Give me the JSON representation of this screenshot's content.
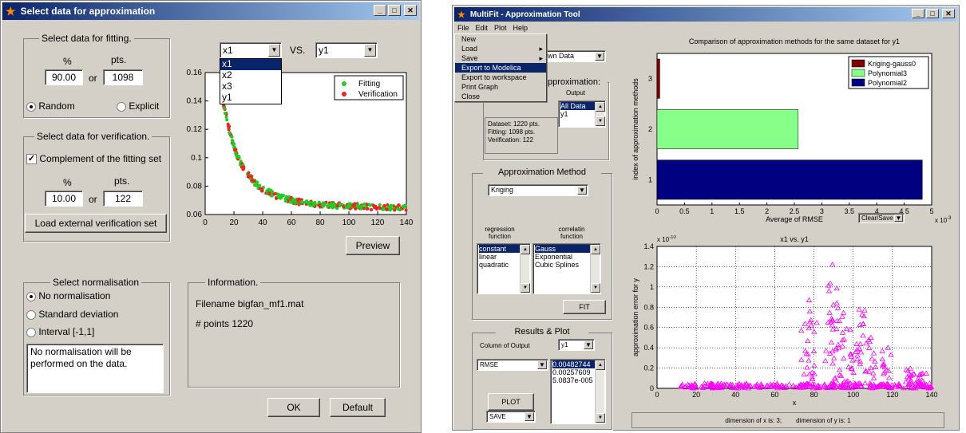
{
  "left_window": {
    "title": "Select data for approximation",
    "fit_group": {
      "title": "Select data for fitting.",
      "pct_label": "%",
      "pts_label": "pts.",
      "pct_value": "90.00",
      "or": "or",
      "pts_value": "1098",
      "random": "Random",
      "explicit": "Explicit"
    },
    "ver_group": {
      "title": "Select data for verification.",
      "complement": "Complement of the fitting set",
      "pct_label": "%",
      "pts_label": "pts.",
      "pct_value": "10.00",
      "or": "or",
      "pts_value": "122",
      "load_btn": "Load external verification set"
    },
    "norm_group": {
      "title": "Select normalisation",
      "opt1": "No normalisation",
      "opt2": "Standard deviation",
      "opt3": "Interval [-1,1]",
      "note": "No normalisation will be performed on the data."
    },
    "info_group": {
      "title": "Information.",
      "filename": "Filename bigfan_mf1.mat",
      "points": "# points 1220"
    },
    "x_select": "x1",
    "vs": "VS.",
    "y_select": "y1",
    "dropdown_options": [
      "x1",
      "x2",
      "x3",
      "y1"
    ],
    "preview": "Preview",
    "ok": "OK",
    "default": "Default",
    "chart_data": {
      "type": "scatter",
      "xlim": [
        0,
        140
      ],
      "ylim": [
        0.06,
        0.16
      ],
      "xticks": [
        "0",
        "20",
        "40",
        "60",
        "80",
        "100",
        "120",
        "140"
      ],
      "yticks": [
        "0.06",
        "0.08",
        "0.1",
        "0.12",
        "0.14",
        "0.16"
      ],
      "legend": [
        "Fitting",
        "Verification"
      ],
      "legend_position": "top-right",
      "colors": {
        "fitting": "#22cc22",
        "verification": "#ee2222"
      },
      "curve": [
        [
          12,
          0.141
        ],
        [
          15,
          0.128
        ],
        [
          18,
          0.115
        ],
        [
          22,
          0.102
        ],
        [
          26,
          0.094
        ],
        [
          30,
          0.088
        ],
        [
          35,
          0.082
        ],
        [
          40,
          0.078
        ],
        [
          50,
          0.073
        ],
        [
          60,
          0.07
        ],
        [
          70,
          0.068
        ],
        [
          80,
          0.067
        ],
        [
          100,
          0.066
        ],
        [
          120,
          0.065
        ],
        [
          140,
          0.065
        ]
      ]
    }
  },
  "right_window": {
    "title": "MultiFit - Approximation Tool",
    "menubar": [
      "File",
      "Edit",
      "Plot",
      "Help"
    ],
    "file_menu": [
      "New",
      "Load",
      "Save",
      "Export to Modelica",
      "Export to workspace",
      "Print Graph",
      "Close"
    ],
    "hidden_combo": "wn Data",
    "approx_group_title": "pproximation:",
    "output_label": "Output",
    "output_list": [
      "All Data",
      "y1"
    ],
    "dataset_info": [
      "Dataset: 1220 pts.",
      "Fitting: 1098 pts.",
      "Verification: 122"
    ],
    "method_group": {
      "title": "Approximation Method",
      "method": "Kriging",
      "regression_label": "regression\nfunction",
      "correlation_label": "correlatin\nfunction",
      "regression_list": [
        "constant",
        "linear",
        "quadratic"
      ],
      "correlation_list": [
        "Gauss",
        "Exponential",
        "Cubic Splines"
      ],
      "fit": "FIT"
    },
    "results_group": {
      "title": "Results & Plot",
      "column_label": "Column of Output",
      "column_value": "y1",
      "metric": "RMSE",
      "values": [
        "0.00482744",
        "0.00257609",
        "5.0837e-005"
      ],
      "plot": "PLOT",
      "save": "SAVE"
    },
    "bar_chart": {
      "title": "Comparison of approximation methods for the same dataset for y1",
      "type": "bar",
      "orientation": "horizontal",
      "ylabel": "index of approximation methods",
      "xlabel": "Average of RMSE",
      "xlim": [
        0,
        5
      ],
      "xscale": "x 10^-3",
      "scale_prefix": "x 10",
      "scale_exp": "-3",
      "xticks": [
        "0",
        "0.5",
        "1",
        "1.5",
        "2",
        "2.5",
        "3",
        "3.5",
        "4",
        "4.5",
        "5"
      ],
      "categories": [
        "3",
        "2",
        "1"
      ],
      "series": [
        {
          "name": "Kriging-gauss0",
          "value": 0.05,
          "color": "#800000"
        },
        {
          "name": "Polynomial3",
          "value": 2.57,
          "color": "#88ff88"
        },
        {
          "name": "Polynomial2",
          "value": 4.83,
          "color": "#000080"
        }
      ],
      "clear_save": "Clear/Save"
    },
    "scatter_chart": {
      "title": "x1 vs. y1",
      "type": "scatter",
      "xlabel": "x",
      "ylabel": "approximation error for y",
      "scale_prefix": "x 10",
      "scale_exp": "-10",
      "xlim": [
        0,
        140
      ],
      "ylim": [
        0,
        1.4
      ],
      "xticks": [
        "0",
        "20",
        "40",
        "60",
        "80",
        "100",
        "120",
        "140"
      ],
      "yticks": [
        "0",
        "0.2",
        "0.4",
        "0.6",
        "0.8",
        "1",
        "1.2",
        "1.4"
      ],
      "marker_color": "#ff00ff"
    },
    "status": {
      "dimx": "dimension of x is: 3;",
      "dimy": "dimension of y is: 1"
    }
  }
}
